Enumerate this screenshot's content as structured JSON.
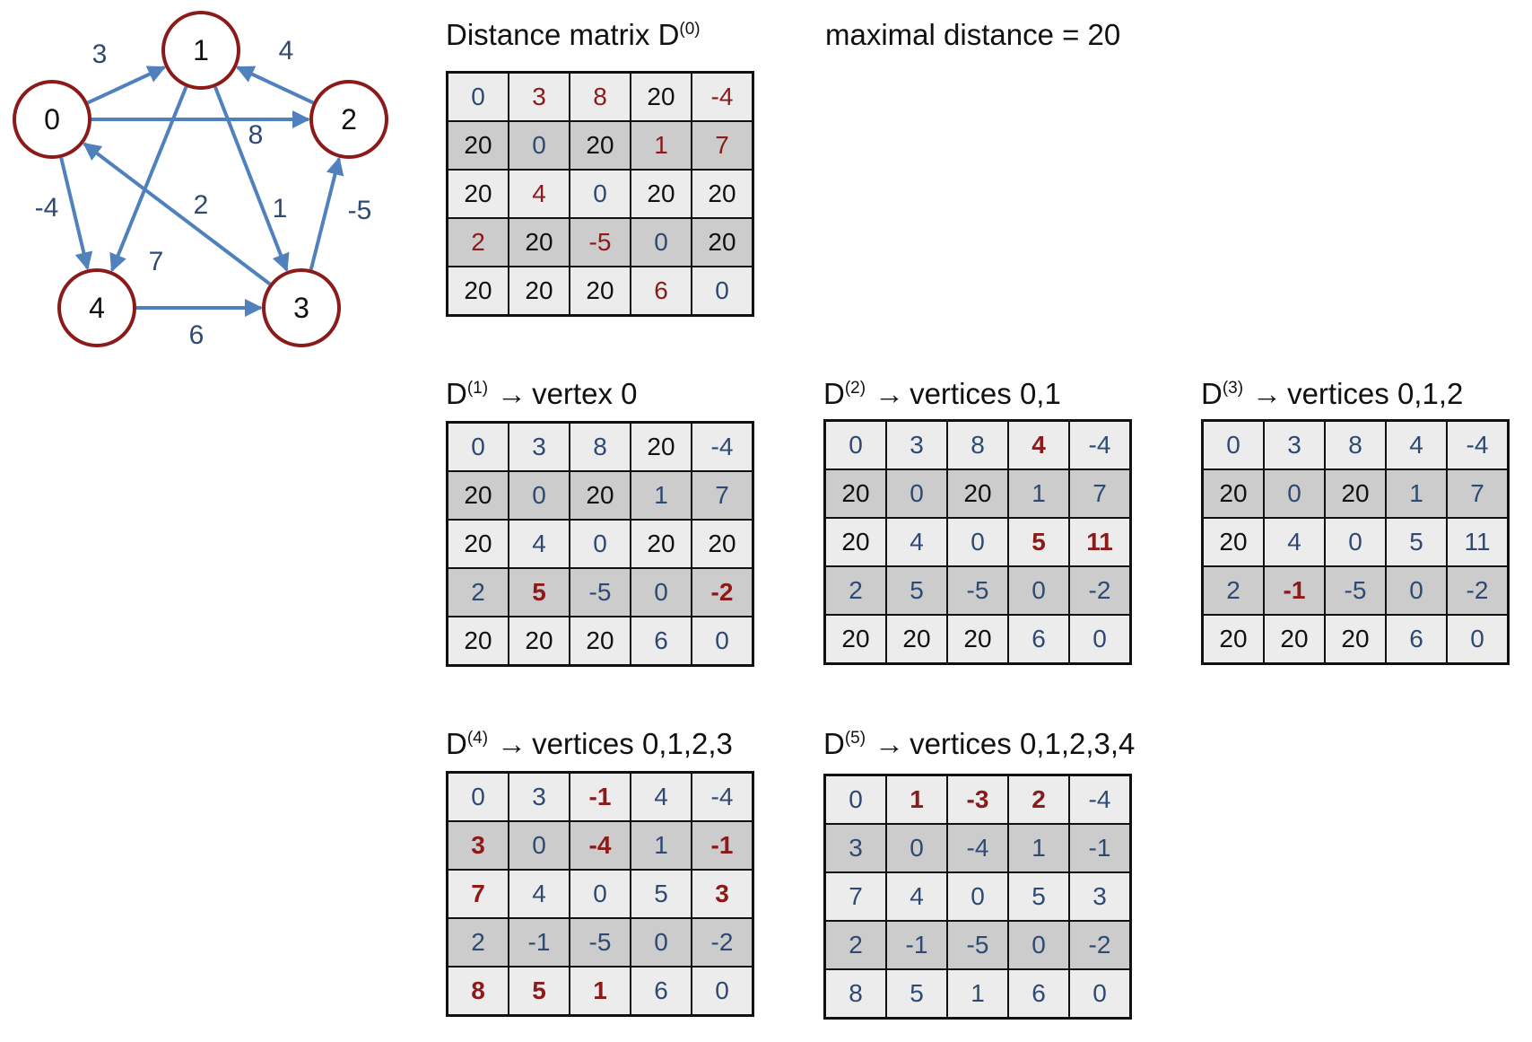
{
  "graph": {
    "vertices": [
      {
        "id": "0",
        "label": "0"
      },
      {
        "id": "1",
        "label": "1"
      },
      {
        "id": "2",
        "label": "2"
      },
      {
        "id": "3",
        "label": "3"
      },
      {
        "id": "4",
        "label": "4"
      }
    ],
    "edges": [
      {
        "from": "0",
        "to": "1",
        "weight": "3"
      },
      {
        "from": "2",
        "to": "1",
        "weight": "4"
      },
      {
        "from": "0",
        "to": "2",
        "weight": "8"
      },
      {
        "from": "1",
        "to": "4",
        "weight": "7"
      },
      {
        "from": "1",
        "to": "3",
        "weight": "1"
      },
      {
        "from": "3",
        "to": "0",
        "weight": "2"
      },
      {
        "from": "0",
        "to": "4",
        "weight": "-4"
      },
      {
        "from": "3",
        "to": "2",
        "weight": "-5"
      },
      {
        "from": "4",
        "to": "3",
        "weight": "6"
      }
    ],
    "colors": {
      "vertex_border": "#8b1a1a",
      "edge": "#4f81bd",
      "weight_text": "#2e4a73"
    }
  },
  "info": {
    "max_distance": "maximal distance = 20"
  },
  "matrices": [
    {
      "id": "d0",
      "base": "D",
      "sup": "(0)",
      "label": "Distance matrix ",
      "arrow": "",
      "desc": "",
      "rows": [
        [
          "0",
          "3",
          "8",
          "20",
          "-4"
        ],
        [
          "20",
          "0",
          "20",
          "1",
          "7"
        ],
        [
          "20",
          "4",
          "0",
          "20",
          "20"
        ],
        [
          "2",
          "20",
          "-5",
          "0",
          "20"
        ],
        [
          "20",
          "20",
          "20",
          "6",
          "0"
        ]
      ],
      "styles": [
        [
          "b",
          "r",
          "r",
          "k",
          "r"
        ],
        [
          "k",
          "b",
          "k",
          "r",
          "r"
        ],
        [
          "k",
          "r",
          "b",
          "k",
          "k"
        ],
        [
          "r",
          "k",
          "r",
          "b",
          "k"
        ],
        [
          "k",
          "k",
          "k",
          "r",
          "b"
        ]
      ]
    },
    {
      "id": "d1",
      "base": "D",
      "sup": "(1)",
      "label": "",
      "arrow": "→",
      "desc": "vertex 0",
      "rows": [
        [
          "0",
          "3",
          "8",
          "20",
          "-4"
        ],
        [
          "20",
          "0",
          "20",
          "1",
          "7"
        ],
        [
          "20",
          "4",
          "0",
          "20",
          "20"
        ],
        [
          "2",
          "5",
          "-5",
          "0",
          "-2"
        ],
        [
          "20",
          "20",
          "20",
          "6",
          "0"
        ]
      ],
      "styles": [
        [
          "b",
          "b",
          "b",
          "k",
          "b"
        ],
        [
          "k",
          "b",
          "k",
          "b",
          "b"
        ],
        [
          "k",
          "b",
          "b",
          "k",
          "k"
        ],
        [
          "b",
          "h",
          "b",
          "b",
          "h"
        ],
        [
          "k",
          "k",
          "k",
          "b",
          "b"
        ]
      ]
    },
    {
      "id": "d2",
      "base": "D",
      "sup": "(2)",
      "label": "",
      "arrow": "→",
      "desc": "vertices 0,1",
      "rows": [
        [
          "0",
          "3",
          "8",
          "4",
          "-4"
        ],
        [
          "20",
          "0",
          "20",
          "1",
          "7"
        ],
        [
          "20",
          "4",
          "0",
          "5",
          "11"
        ],
        [
          "2",
          "5",
          "-5",
          "0",
          "-2"
        ],
        [
          "20",
          "20",
          "20",
          "6",
          "0"
        ]
      ],
      "styles": [
        [
          "b",
          "b",
          "b",
          "h",
          "b"
        ],
        [
          "k",
          "b",
          "k",
          "b",
          "b"
        ],
        [
          "k",
          "b",
          "b",
          "h",
          "h"
        ],
        [
          "b",
          "b",
          "b",
          "b",
          "b"
        ],
        [
          "k",
          "k",
          "k",
          "b",
          "b"
        ]
      ]
    },
    {
      "id": "d3",
      "base": "D",
      "sup": "(3)",
      "label": "",
      "arrow": "→",
      "desc": "vertices 0,1,2",
      "rows": [
        [
          "0",
          "3",
          "8",
          "4",
          "-4"
        ],
        [
          "20",
          "0",
          "20",
          "1",
          "7"
        ],
        [
          "20",
          "4",
          "0",
          "5",
          "11"
        ],
        [
          "2",
          "-1",
          "-5",
          "0",
          "-2"
        ],
        [
          "20",
          "20",
          "20",
          "6",
          "0"
        ]
      ],
      "styles": [
        [
          "b",
          "b",
          "b",
          "b",
          "b"
        ],
        [
          "k",
          "b",
          "k",
          "b",
          "b"
        ],
        [
          "k",
          "b",
          "b",
          "b",
          "b"
        ],
        [
          "b",
          "h",
          "b",
          "b",
          "b"
        ],
        [
          "k",
          "k",
          "k",
          "b",
          "b"
        ]
      ]
    },
    {
      "id": "d4",
      "base": "D",
      "sup": "(4)",
      "label": "",
      "arrow": "→",
      "desc": "vertices 0,1,2,3",
      "rows": [
        [
          "0",
          "3",
          "-1",
          "4",
          "-4"
        ],
        [
          "3",
          "0",
          "-4",
          "1",
          "-1"
        ],
        [
          "7",
          "4",
          "0",
          "5",
          "3"
        ],
        [
          "2",
          "-1",
          "-5",
          "0",
          "-2"
        ],
        [
          "8",
          "5",
          "1",
          "6",
          "0"
        ]
      ],
      "styles": [
        [
          "b",
          "b",
          "h",
          "b",
          "b"
        ],
        [
          "h",
          "b",
          "h",
          "b",
          "h"
        ],
        [
          "h",
          "b",
          "b",
          "b",
          "h"
        ],
        [
          "b",
          "b",
          "b",
          "b",
          "b"
        ],
        [
          "h",
          "h",
          "h",
          "b",
          "b"
        ]
      ]
    },
    {
      "id": "d5",
      "base": "D",
      "sup": "(5)",
      "label": "",
      "arrow": "→",
      "desc": "vertices 0,1,2,3,4",
      "rows": [
        [
          "0",
          "1",
          "-3",
          "2",
          "-4"
        ],
        [
          "3",
          "0",
          "-4",
          "1",
          "-1"
        ],
        [
          "7",
          "4",
          "0",
          "5",
          "3"
        ],
        [
          "2",
          "-1",
          "-5",
          "0",
          "-2"
        ],
        [
          "8",
          "5",
          "1",
          "6",
          "0"
        ]
      ],
      "styles": [
        [
          "b",
          "h",
          "h",
          "h",
          "b"
        ],
        [
          "b",
          "b",
          "b",
          "b",
          "b"
        ],
        [
          "b",
          "b",
          "b",
          "b",
          "b"
        ],
        [
          "b",
          "b",
          "b",
          "b",
          "b"
        ],
        [
          "b",
          "b",
          "b",
          "b",
          "b"
        ]
      ]
    }
  ]
}
